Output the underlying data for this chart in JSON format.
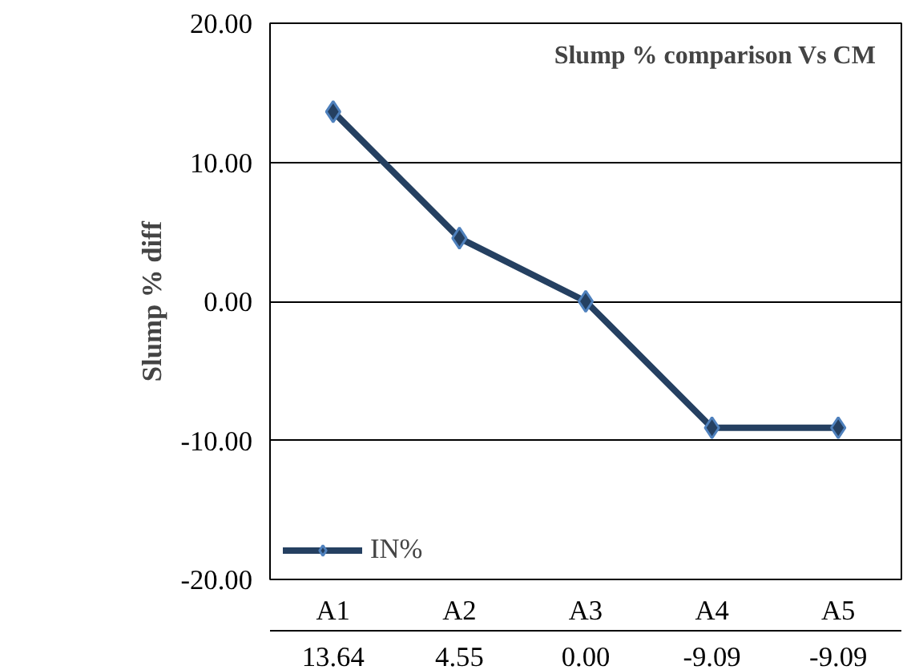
{
  "chart_data": {
    "type": "line",
    "title": "Slump % comparison Vs CM",
    "ylabel": "Slump % diff",
    "categories": [
      "A1",
      "A2",
      "A3",
      "A4",
      "A5"
    ],
    "series": [
      {
        "name": "IN%",
        "color": "#254061",
        "values": [
          13.64,
          4.55,
          0.0,
          -9.09,
          -9.09
        ],
        "value_labels": [
          "13.64",
          "4.55",
          "0.00",
          "-9.09",
          "-9.09"
        ]
      }
    ],
    "ylim": [
      -20,
      20
    ],
    "yticks": [
      {
        "value": -20,
        "label": "-20.00"
      },
      {
        "value": -10,
        "label": "-10.00"
      },
      {
        "value": 0,
        "label": "0.00"
      },
      {
        "value": 10,
        "label": "10.00"
      },
      {
        "value": 20,
        "label": "20.00"
      }
    ],
    "grid": "y",
    "legend": "bottom left",
    "marker": "diamond",
    "line_style": "solid"
  }
}
